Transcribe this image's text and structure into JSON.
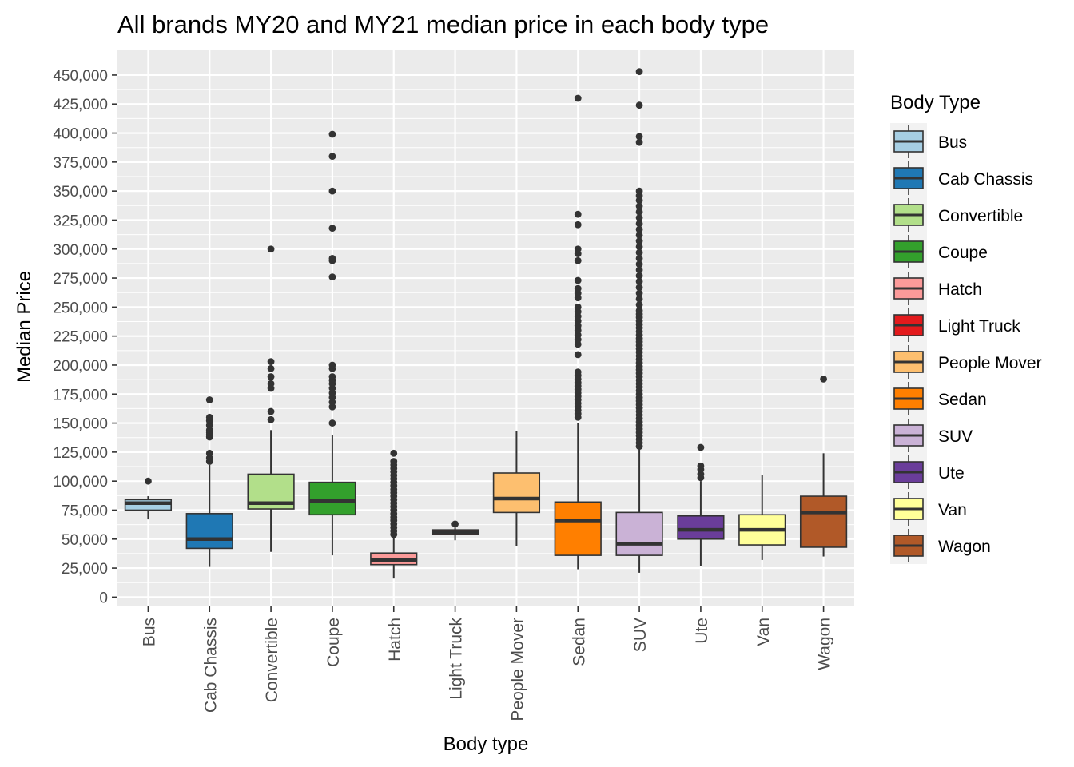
{
  "chart_data": {
    "type": "box",
    "title": "All brands MY20 and MY21 median price in each body type",
    "xlabel": "Body type",
    "ylabel": "Median Price",
    "ylim": [
      -8000,
      472000
    ],
    "y_major_ticks": [
      0,
      25000,
      50000,
      75000,
      100000,
      125000,
      150000,
      175000,
      200000,
      225000,
      250000,
      275000,
      300000,
      325000,
      350000,
      375000,
      400000,
      425000,
      450000
    ],
    "y_tick_labels": [
      "0",
      "25,000",
      "50,000",
      "75,000",
      "100,000",
      "125,000",
      "150,000",
      "175,000",
      "200,000",
      "225,000",
      "250,000",
      "275,000",
      "300,000",
      "325,000",
      "350,000",
      "375,000",
      "400,000",
      "425,000",
      "450,000"
    ],
    "grid": true,
    "panel_background": "#ebebeb",
    "legend_title": "Body Type",
    "legend_position": "right",
    "categories": [
      "Bus",
      "Cab Chassis",
      "Convertible",
      "Coupe",
      "Hatch",
      "Light Truck",
      "People Mover",
      "Sedan",
      "SUV",
      "Ute",
      "Van",
      "Wagon"
    ],
    "colors": [
      "#a6cee3",
      "#1f78b4",
      "#b2df8a",
      "#33a02c",
      "#fb9a99",
      "#e31a1c",
      "#fdbf6f",
      "#ff7f00",
      "#cab2d6",
      "#6a3d9a",
      "#ffff99",
      "#b15928"
    ],
    "boxes": [
      {
        "name": "Bus",
        "whisker_low": 67000,
        "q1": 75000,
        "median": 81000,
        "q3": 84000,
        "whisker_high": 87000,
        "outliers": [
          100000
        ]
      },
      {
        "name": "Cab Chassis",
        "whisker_low": 26000,
        "q1": 42000,
        "median": 50000,
        "q3": 72000,
        "whisker_high": 114000,
        "outliers": [
          117000,
          120000,
          124000,
          138000,
          140000,
          142000,
          144000,
          148000,
          152000,
          155000,
          170000
        ]
      },
      {
        "name": "Convertible",
        "whisker_low": 39000,
        "q1": 76000,
        "median": 81000,
        "q3": 106000,
        "whisker_high": 144000,
        "outliers": [
          153000,
          160000,
          180000,
          184000,
          190000,
          197000,
          203000,
          300000
        ]
      },
      {
        "name": "Coupe",
        "whisker_low": 36000,
        "q1": 71000,
        "median": 83000,
        "q3": 99000,
        "whisker_high": 140000,
        "outliers": [
          150000,
          164000,
          168000,
          172000,
          176000,
          180000,
          184000,
          187000,
          190000,
          197000,
          200000,
          276000,
          290000,
          292000,
          318000,
          350000,
          380000,
          399000
        ]
      },
      {
        "name": "Hatch",
        "whisker_low": 16000,
        "q1": 28000,
        "median": 32000,
        "q3": 38000,
        "whisker_high": 52000,
        "outliers": [
          54000,
          57000,
          60000,
          63000,
          66000,
          69000,
          72000,
          75000,
          78000,
          81000,
          84000,
          87000,
          90000,
          93000,
          96000,
          99000,
          102000,
          105000,
          108000,
          111000,
          114000,
          117000,
          124000
        ]
      },
      {
        "name": "Light Truck",
        "whisker_low": 49000,
        "q1": 54000,
        "median": 56000,
        "q3": 58000,
        "whisker_high": 60000,
        "outliers": [
          63000
        ]
      },
      {
        "name": "People Mover",
        "whisker_low": 44000,
        "q1": 73000,
        "median": 85000,
        "q3": 107000,
        "whisker_high": 143000,
        "outliers": []
      },
      {
        "name": "Sedan",
        "whisker_low": 24000,
        "q1": 36000,
        "median": 66000,
        "q3": 82000,
        "whisker_high": 150000,
        "outliers": [
          155000,
          158000,
          161000,
          164000,
          167000,
          170000,
          173000,
          176000,
          179000,
          182000,
          185000,
          188000,
          191000,
          194000,
          209000,
          218000,
          222000,
          226000,
          230000,
          234000,
          238000,
          242000,
          246000,
          250000,
          258000,
          262000,
          266000,
          273000,
          290000,
          296000,
          300000,
          321000,
          330000,
          430000
        ]
      },
      {
        "name": "SUV",
        "whisker_low": 21000,
        "q1": 36000,
        "median": 46000,
        "q3": 73000,
        "whisker_high": 128000,
        "outliers": [
          130000,
          133000,
          136000,
          139000,
          142000,
          145000,
          148000,
          151000,
          154000,
          157000,
          160000,
          163000,
          166000,
          169000,
          172000,
          175000,
          178000,
          181000,
          184000,
          187000,
          190000,
          193000,
          196000,
          199000,
          202000,
          205000,
          208000,
          211000,
          214000,
          217000,
          220000,
          223000,
          226000,
          229000,
          232000,
          235000,
          238000,
          241000,
          244000,
          247000,
          252000,
          257000,
          262000,
          267000,
          272000,
          277000,
          282000,
          287000,
          292000,
          297000,
          302000,
          307000,
          312000,
          317000,
          322000,
          327000,
          332000,
          337000,
          342000,
          346000,
          350000,
          392000,
          397000,
          424000,
          453000
        ]
      },
      {
        "name": "Ute",
        "whisker_low": 27000,
        "q1": 50000,
        "median": 58000,
        "q3": 70000,
        "whisker_high": 100000,
        "outliers": [
          103000,
          106000,
          110000,
          113000,
          129000
        ]
      },
      {
        "name": "Van",
        "whisker_low": 32000,
        "q1": 45000,
        "median": 58000,
        "q3": 71000,
        "whisker_high": 105000,
        "outliers": []
      },
      {
        "name": "Wagon",
        "whisker_low": 35000,
        "q1": 43000,
        "median": 73000,
        "q3": 87000,
        "whisker_high": 124000,
        "outliers": [
          188000
        ]
      }
    ]
  }
}
